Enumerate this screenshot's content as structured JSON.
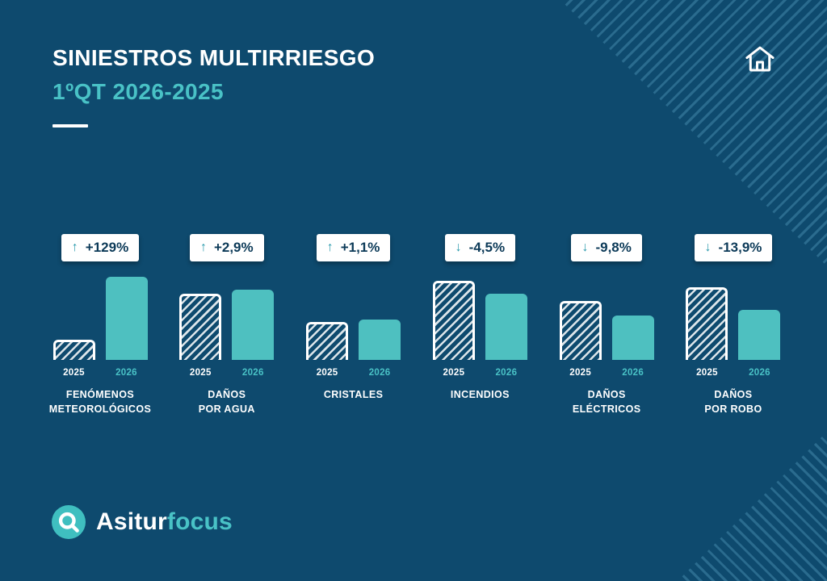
{
  "colors": {
    "background": "#0E4A6E",
    "accent_teal": "#4EC0C0",
    "white": "#FFFFFF",
    "badge_text": "#0C3A58",
    "badge_arrow": "#2A9AAC",
    "corner_stripes": "#2A6B8E"
  },
  "header": {
    "title": "SINIESTROS MULTIRRIESGO",
    "subtitle": "1ºQT 2026-2025"
  },
  "icons": {
    "home": "home-icon",
    "logo": "magnifier-icon",
    "up_arrow": "↑",
    "down_arrow": "↓"
  },
  "chart_data": {
    "type": "bar",
    "title": "SINIESTROS MULTIRRIESGO 1ºQT 2026-2025",
    "legend_position": "none",
    "values_unit": "relative bar height (no numeric axis shown in image)",
    "ylim": [
      0,
      114
    ],
    "categories": [
      "FENÓMENOS\nMETEOROLÓGICOS",
      "DAÑOS\nPOR AGUA",
      "CRISTALES",
      "INCENDIOS",
      "DAÑOS\nELÉCTRICOS",
      "DAÑOS\nPOR ROBO"
    ],
    "series": [
      {
        "name": "2025",
        "style": "white-hatched",
        "values": [
          25,
          82,
          47,
          98,
          73,
          90
        ]
      },
      {
        "name": "2026",
        "style": "solid-teal",
        "values": [
          103,
          87,
          50,
          82,
          55,
          62
        ]
      }
    ],
    "deltas": [
      {
        "label": "+129%",
        "direction": "up"
      },
      {
        "label": "+2,9%",
        "direction": "up"
      },
      {
        "label": "+1,1%",
        "direction": "up"
      },
      {
        "label": "-4,5%",
        "direction": "down"
      },
      {
        "label": "-9,8%",
        "direction": "down"
      },
      {
        "label": "-13,9%",
        "direction": "down"
      }
    ]
  },
  "footer": {
    "brand_primary": "Asitur",
    "brand_secondary": "focus"
  }
}
